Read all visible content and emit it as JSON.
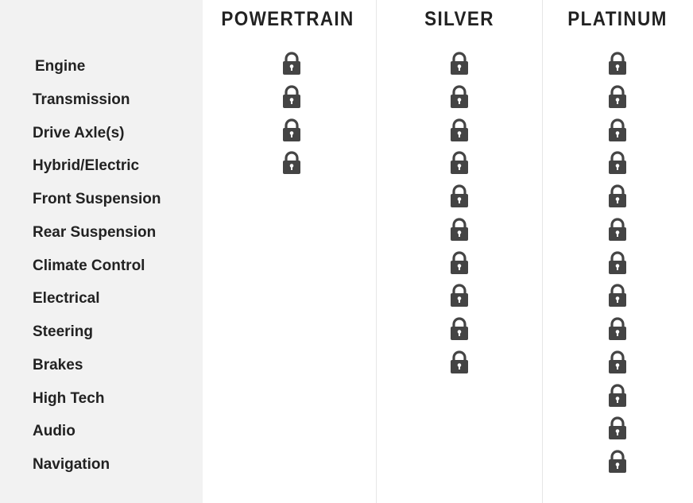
{
  "columns": [
    "POWERTRAIN",
    "SILVER",
    "PLATINUM"
  ],
  "lock_color": "#444444",
  "rows": [
    {
      "label": "Engine",
      "covered": [
        true,
        true,
        true
      ]
    },
    {
      "label": "Transmission",
      "covered": [
        true,
        true,
        true
      ]
    },
    {
      "label": "Drive Axle(s)",
      "covered": [
        true,
        true,
        true
      ]
    },
    {
      "label": "Hybrid/Electric",
      "covered": [
        true,
        true,
        true
      ]
    },
    {
      "label": "Front Suspension",
      "covered": [
        false,
        true,
        true
      ]
    },
    {
      "label": "Rear Suspension",
      "covered": [
        false,
        true,
        true
      ]
    },
    {
      "label": "Climate Control",
      "covered": [
        false,
        true,
        true
      ]
    },
    {
      "label": "Electrical",
      "covered": [
        false,
        true,
        true
      ]
    },
    {
      "label": "Steering",
      "covered": [
        false,
        true,
        true
      ]
    },
    {
      "label": "Brakes",
      "covered": [
        false,
        true,
        true
      ]
    },
    {
      "label": "High Tech",
      "covered": [
        false,
        false,
        true
      ]
    },
    {
      "label": "Audio",
      "covered": [
        false,
        false,
        true
      ]
    },
    {
      "label": "Navigation",
      "covered": [
        false,
        false,
        true
      ]
    }
  ]
}
